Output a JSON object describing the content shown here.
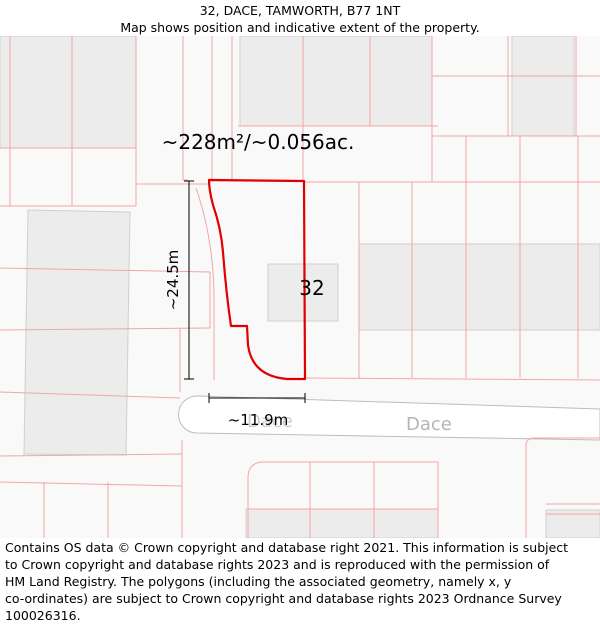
{
  "header": {
    "title": "32, DACE, TAMWORTH, B77 1NT",
    "subtitle": "Map shows position and indicative extent of the property."
  },
  "map": {
    "area_label": "~228m²/~0.056ac.",
    "height_label": "~24.5m",
    "width_label": "~11.9m",
    "plot_number": "32",
    "street_name": "Dace",
    "colors": {
      "background": "#f9f9f9",
      "building": "#ececec",
      "building_stroke": "#cfcfcf",
      "parcel_line": "#f3a5a5",
      "boundary": "#e00000",
      "road": "#ffffff",
      "road_edge": "#bdbdbd"
    }
  },
  "footer": {
    "line1": "Contains OS data © Crown copyright and database right 2021. This information is subject",
    "line2": "to Crown copyright and database rights 2023 and is reproduced with the permission of",
    "line3": "HM Land Registry. The polygons (including the associated geometry, namely x, y",
    "line4": "co-ordinates) are subject to Crown copyright and database rights 2023 Ordnance Survey",
    "line5": "100026316."
  }
}
